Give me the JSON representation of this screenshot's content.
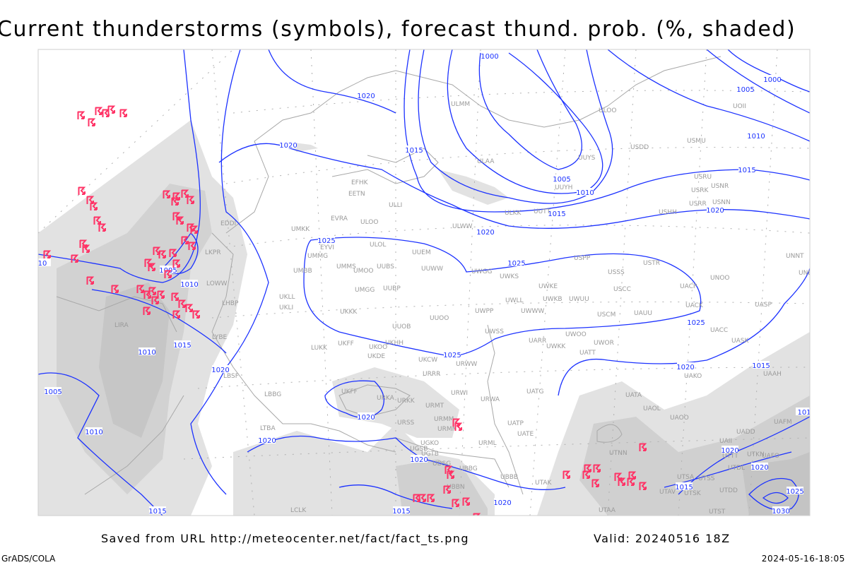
{
  "title": "Current thunderstorms (symbols), forecast thund. prob. (%, shaded)",
  "footer": {
    "saved": "Saved from URL http://meteocenter.net/fact/fact_ts.png",
    "valid": "Valid: 20240516 18Z",
    "software": "GrADS/COLA",
    "timestamp": "2024-05-16-18:05"
  },
  "colors": {
    "isobar": "#1c32ff",
    "thunderstorm_symbol": "#ff3366",
    "probability_shading_light": "#e2e2e2",
    "probability_shading_dark": "#c4c4c4",
    "coastline_border": "#a8a8a8",
    "station_label": "#9a9a9a"
  },
  "symbol_icon": "thunderstorm-symbol-icon",
  "isobar_labels": [
    "1000",
    "1020",
    "1020",
    "1015",
    "1005",
    "1010",
    "1015",
    "1020",
    "1015",
    "1010",
    "1005",
    "1000",
    "1020",
    "1025",
    "1025",
    "1025",
    "1025",
    "1020",
    "1015",
    "1020",
    "1020",
    "1020",
    "1015",
    "1020",
    "1020",
    "1015",
    "1010",
    "1010",
    "1005",
    "1005",
    "1010",
    "1015",
    "1020",
    "1020",
    "1015",
    "1025",
    "1030",
    "101",
    "10"
  ],
  "stations": [
    "UMKK",
    "EYVI",
    "ULOL",
    "UUEM",
    "UMMG",
    "UMMS",
    "UUBS",
    "UUWW",
    "UMOO",
    "UMBB",
    "UWGG",
    "UWKS",
    "UMGG",
    "UUBP",
    "UKLL",
    "UKLI",
    "UKKK",
    "UWPP",
    "UUOO",
    "UUOB",
    "UWSS",
    "UKHH",
    "UKFF",
    "UKOO",
    "UKDE",
    "UKCW",
    "LUKK",
    "UWWW",
    "UWKE",
    "UWLL",
    "UWKB",
    "UWUU",
    "USSS",
    "USCC",
    "USTR",
    "USPP",
    "UNOO",
    "UACP",
    "UACK",
    "USCM",
    "UAUU",
    "UWOO",
    "UWOR",
    "UARR",
    "UATT",
    "UACC",
    "UASP",
    "UASK",
    "UNNT",
    "UNBB",
    "UAKO",
    "UAAH",
    "ULOO",
    "UOII",
    "USMU",
    "USDD",
    "UUYS",
    "ULAA",
    "USRU",
    "USRK",
    "USNR",
    "UUYH",
    "USRR",
    "USNN",
    "USHH",
    "ULKK",
    "UUTT",
    "ULWW",
    "ULMM",
    "EFHK",
    "EETN",
    "ULLI",
    "EVRA",
    "ULOO",
    "EDDI",
    "LKPR",
    "LOWW",
    "LHBP",
    "LIRA",
    "LYBE",
    "LBSF",
    "LBBG",
    "LTBA",
    "UKFF",
    "URKA",
    "URKK",
    "URMT",
    "URWI",
    "URMM",
    "URMN",
    "URSS",
    "UGKO",
    "UGSB",
    "UGTB",
    "UDSG",
    "UBBG",
    "UBBN",
    "UBBB",
    "URML",
    "URWA",
    "UATG",
    "UATP",
    "UATE",
    "UATA",
    "UAOL",
    "UAOO",
    "UTNN",
    "UTAK",
    "UTAA",
    "UTSA",
    "UTSS",
    "UTAV",
    "UTSK",
    "UTDD",
    "UTST",
    "UADD",
    "UAII",
    "UTTT",
    "UTKN",
    "UAFO",
    "UTDL",
    "UAFM",
    "UWKK",
    "URWW",
    "URRR",
    "LCLK"
  ]
}
